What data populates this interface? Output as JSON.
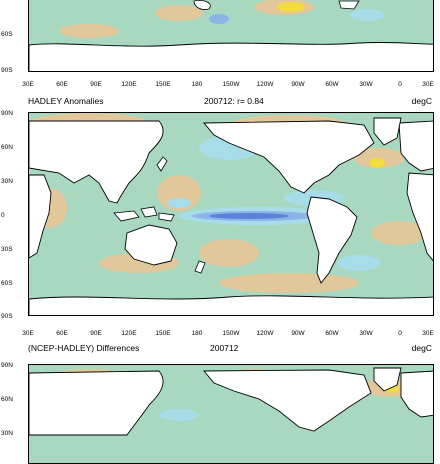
{
  "lon_labels": [
    "30E",
    "60E",
    "90E",
    "120E",
    "150E",
    "180",
    "150W",
    "120W",
    "90W",
    "60W",
    "30W",
    "0",
    "30E"
  ],
  "panel1": {
    "lat_labels": [
      "60S",
      "90S"
    ]
  },
  "panel2": {
    "title_left": "HADLEY Anomalies",
    "title_mid": "200712: r= 0.84",
    "units": "degC",
    "lat_labels": [
      "90N",
      "60N",
      "30N",
      "0",
      "30S",
      "60S",
      "90S"
    ]
  },
  "panel3": {
    "title_left": "(NCEP-HADLEY) Differences",
    "title_mid": "200712",
    "units": "degC",
    "lat_labels": [
      "90N",
      "60N",
      "30N"
    ]
  },
  "colors": {
    "ocean_neutral": "#a8d8c0",
    "warm": "#e2c79a",
    "warm_strong": "#f2dc3e",
    "cool": "#a6dde8",
    "cold": "#8cb4e8",
    "coldest": "#5a82d8",
    "land": "#ffffff"
  }
}
